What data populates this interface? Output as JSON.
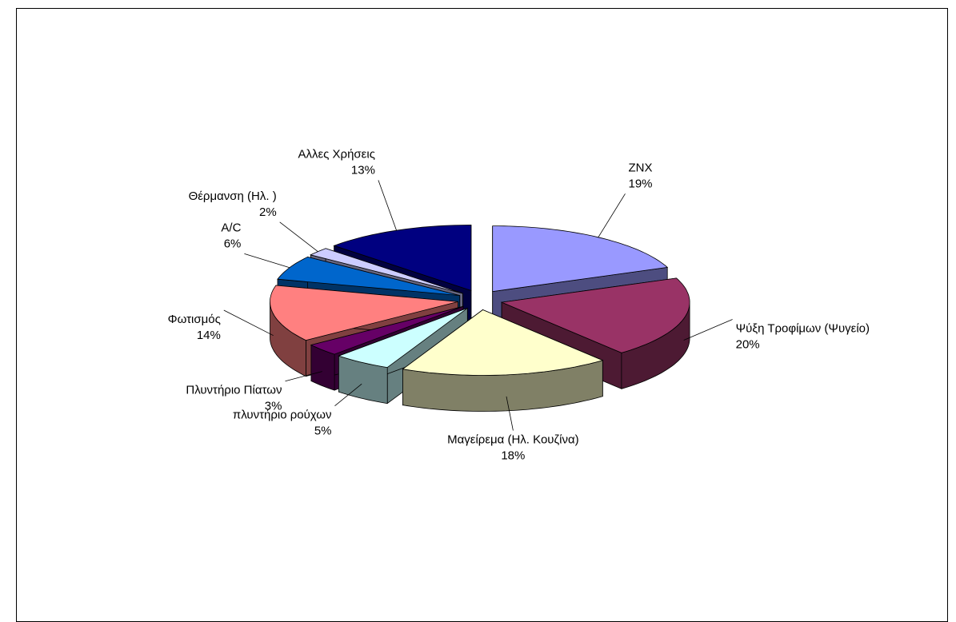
{
  "chart_data": {
    "type": "pie",
    "categories": [
      "ZNX",
      "Ψύξη Τροφίμων (Ψυγείο)",
      "Μαγείρεμα (Ηλ. Κουζίνα)",
      "πλυντήριο ρούχων",
      "Πλυντήριο Πίατων",
      "Φωτισμός",
      "A/C",
      "Θέρμανση (Ηλ. )",
      "Αλλες Χρήσεις"
    ],
    "values": [
      19,
      20,
      18,
      5,
      3,
      14,
      6,
      2,
      13
    ],
    "value_labels": [
      "19%",
      "20%",
      "18%",
      "5%",
      "3%",
      "14%",
      "6%",
      "2%",
      "13%"
    ],
    "colors": [
      "#9999ff",
      "#993366",
      "#ffffcc",
      "#ccffff",
      "#660066",
      "#ff8080",
      "#0066cc",
      "#ccccff",
      "#000080"
    ]
  }
}
